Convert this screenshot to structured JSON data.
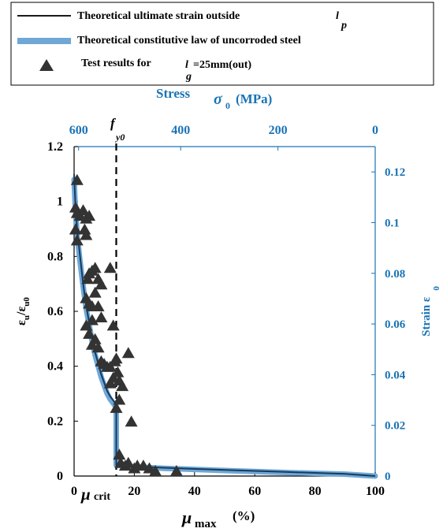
{
  "colors": {
    "blue": "#1a73b5",
    "band": "#6fa8d6",
    "black": "#1a1a1a",
    "marker": "#333333"
  },
  "legend": {
    "item1": {
      "text": "Theoretical ultimate strain outside",
      "sym": "l",
      "sub": "p"
    },
    "item2": {
      "text": "Theoretical constitutive law of uncorroded steel"
    },
    "item3": {
      "text": "Test results for",
      "sym": "l",
      "sub": "g",
      "suffix": "=25mm(out)"
    }
  },
  "axes": {
    "top_title_word": "Stress",
    "top_title_sym": "σ",
    "top_title_sub": "0",
    "top_title_unit": "(MPa)",
    "right_title_word": "Strain ε",
    "right_title_sub": "0",
    "left_title_a": "ε",
    "left_title_a_sub": "u",
    "left_title_slash": "/ε",
    "left_title_b_sub": "u0",
    "bottom_title_sym": "μ",
    "bottom_title_sub": "max",
    "bottom_title_unit": "(%)",
    "mu_crit_sym": "μ",
    "mu_crit_sub": "crit",
    "fy0_sym": "f",
    "fy0_sub": "y0"
  },
  "chart_data": {
    "type": "scatter",
    "x_axis": {
      "label": "μmax (%)",
      "range": [
        0,
        100
      ],
      "ticks": [
        0,
        20,
        40,
        60,
        80,
        100
      ]
    },
    "y_axis": {
      "label": "εu/εu0",
      "range": [
        0,
        1.2
      ],
      "ticks": [
        0,
        0.2,
        0.4,
        0.6,
        0.8,
        1,
        1.2
      ]
    },
    "top_axis": {
      "label": "Stress σ0 (MPa)",
      "ticks": [
        600,
        400,
        200,
        0
      ],
      "tick_positions_x": [
        1.5,
        35.4,
        67.7,
        100
      ]
    },
    "right_axis": {
      "label": "Strain ε0",
      "range": [
        0,
        0.13
      ],
      "ticks": [
        0,
        0.02,
        0.04,
        0.06,
        0.08,
        0.1,
        0.12
      ]
    },
    "mu_crit": 14,
    "series": [
      {
        "name": "Theoretical ultimate strain outside lp",
        "kind": "line",
        "points": [
          [
            0,
            1.1
          ],
          [
            0.4,
            1.0
          ],
          [
            1,
            0.9
          ],
          [
            2,
            0.8
          ],
          [
            3,
            0.7
          ],
          [
            4,
            0.62
          ],
          [
            5,
            0.56
          ],
          [
            6,
            0.5
          ],
          [
            7,
            0.45
          ],
          [
            8,
            0.41
          ],
          [
            9,
            0.37
          ],
          [
            10,
            0.34
          ],
          [
            11,
            0.31
          ],
          [
            12,
            0.29
          ],
          [
            13,
            0.275
          ],
          [
            14,
            0.26
          ],
          [
            14,
            0.04
          ],
          [
            20,
            0.035
          ],
          [
            30,
            0.03
          ],
          [
            50,
            0.022
          ],
          [
            70,
            0.015
          ],
          [
            90,
            0.008
          ],
          [
            100,
            0.0
          ]
        ]
      },
      {
        "name": "Theoretical constitutive law of uncorroded steel",
        "kind": "band",
        "points": [
          [
            0,
            1.08
          ],
          [
            0.4,
            0.98
          ],
          [
            1,
            0.88
          ],
          [
            2,
            0.78
          ],
          [
            3,
            0.69
          ],
          [
            4,
            0.61
          ],
          [
            5,
            0.55
          ],
          [
            6,
            0.49
          ],
          [
            7,
            0.44
          ],
          [
            8,
            0.4
          ],
          [
            9,
            0.36
          ],
          [
            10,
            0.33
          ],
          [
            11,
            0.3
          ],
          [
            12,
            0.28
          ],
          [
            13,
            0.265
          ],
          [
            14,
            0.25
          ],
          [
            14,
            0.04
          ],
          [
            20,
            0.033
          ],
          [
            30,
            0.028
          ],
          [
            50,
            0.02
          ],
          [
            70,
            0.013
          ],
          [
            90,
            0.007
          ],
          [
            100,
            0.0
          ]
        ]
      },
      {
        "name": "Test results for lg=25mm(out)",
        "kind": "scatter",
        "points": [
          [
            1,
            1.08
          ],
          [
            0.5,
            0.98
          ],
          [
            1,
            0.96
          ],
          [
            2,
            0.95
          ],
          [
            3,
            0.97
          ],
          [
            4,
            0.94
          ],
          [
            5,
            0.95
          ],
          [
            0.5,
            0.9
          ],
          [
            1,
            0.86
          ],
          [
            3.5,
            0.9
          ],
          [
            4,
            0.88
          ],
          [
            4.5,
            0.72
          ],
          [
            5,
            0.74
          ],
          [
            6,
            0.75
          ],
          [
            7,
            0.76
          ],
          [
            8,
            0.72
          ],
          [
            9,
            0.7
          ],
          [
            12,
            0.76
          ],
          [
            4,
            0.65
          ],
          [
            5,
            0.63
          ],
          [
            6,
            0.62
          ],
          [
            7,
            0.67
          ],
          [
            8,
            0.62
          ],
          [
            9,
            0.58
          ],
          [
            4,
            0.55
          ],
          [
            5,
            0.52
          ],
          [
            6,
            0.57
          ],
          [
            7,
            0.5
          ],
          [
            6,
            0.48
          ],
          [
            8,
            0.47
          ],
          [
            9,
            0.42
          ],
          [
            10,
            0.41
          ],
          [
            11,
            0.4
          ],
          [
            12,
            0.4
          ],
          [
            13,
            0.36
          ],
          [
            12,
            0.34
          ],
          [
            13.5,
            0.42
          ],
          [
            13,
            0.55
          ],
          [
            14,
            0.43
          ],
          [
            14.5,
            0.38
          ],
          [
            15,
            0.35
          ],
          [
            16,
            0.33
          ],
          [
            14,
            0.25
          ],
          [
            15,
            0.28
          ],
          [
            18,
            0.45
          ],
          [
            19,
            0.2
          ],
          [
            15,
            0.08
          ],
          [
            15.5,
            0.05
          ],
          [
            17,
            0.04
          ],
          [
            18,
            0.05
          ],
          [
            20,
            0.03
          ],
          [
            21,
            0.04
          ],
          [
            23,
            0.04
          ],
          [
            25,
            0.03
          ],
          [
            27,
            0.02
          ],
          [
            34,
            0.02
          ]
        ]
      }
    ]
  }
}
